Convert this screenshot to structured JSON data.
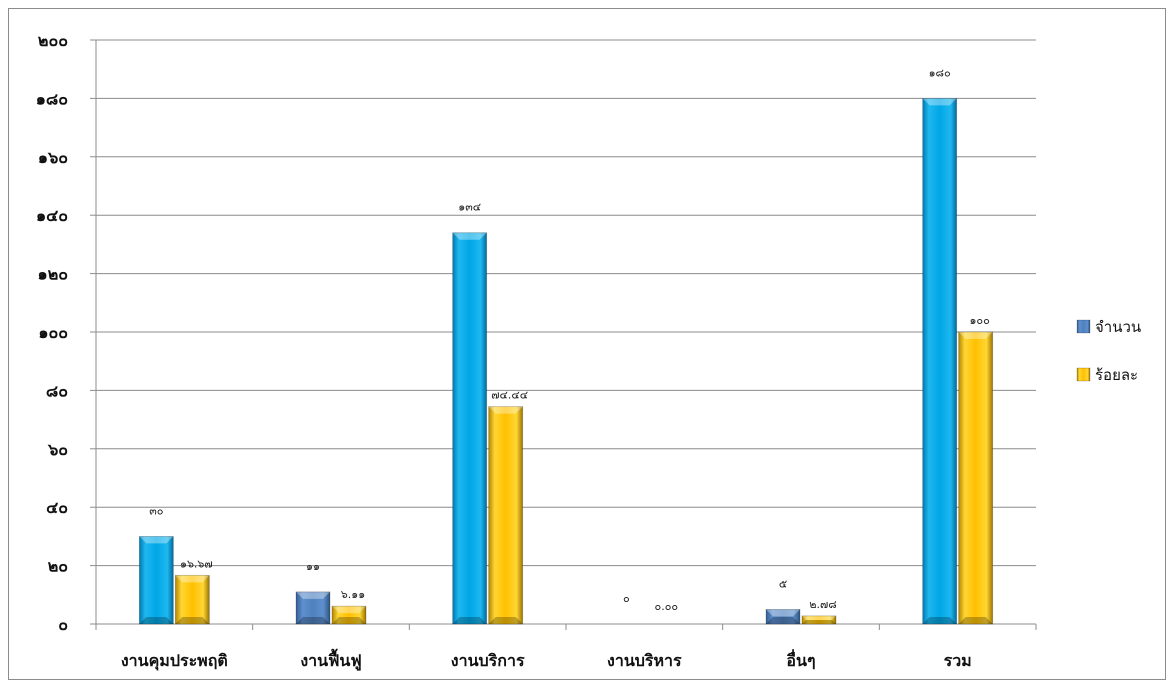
{
  "chart_data": {
    "type": "bar",
    "title": "",
    "xlabel": "",
    "ylabel": "",
    "ylim": [
      0,
      200
    ],
    "yticks": [
      0,
      20,
      40,
      60,
      80,
      100,
      120,
      140,
      160,
      180,
      200
    ],
    "ytick_labels": [
      "๐",
      "๒๐",
      "๔๐",
      "๖๐",
      "๘๐",
      "๑๐๐",
      "๑๒๐",
      "๑๔๐",
      "๑๖๐",
      "๑๘๐",
      "๒๐๐"
    ],
    "grid": true,
    "legend_position": "right",
    "categories": [
      "งานคุมประพฤติ",
      "งานฟื้นฟู",
      "งานบริการ",
      "งานบริหาร",
      "อื่นๆ",
      "รวม"
    ],
    "series": [
      {
        "name": "จำนวน",
        "values": [
          30,
          11,
          134,
          0,
          5,
          180
        ],
        "labels": [
          "๓๐",
          "๑๑",
          "๑๓๔",
          "๐",
          "๕",
          "๑๘๐"
        ],
        "color": "#00a6e6",
        "legend_color": "#4f81bd"
      },
      {
        "name": "ร้อยละ",
        "values": [
          16.67,
          6.11,
          74.44,
          0.0,
          2.78,
          100
        ],
        "labels": [
          "๑๖.๖๗",
          "๖.๑๑",
          "๗๔.๔๔",
          "๐.๐๐",
          "๒.๗๘",
          "๑๐๐"
        ],
        "color": "#ffc000",
        "legend_color": "#ffc000"
      }
    ]
  }
}
